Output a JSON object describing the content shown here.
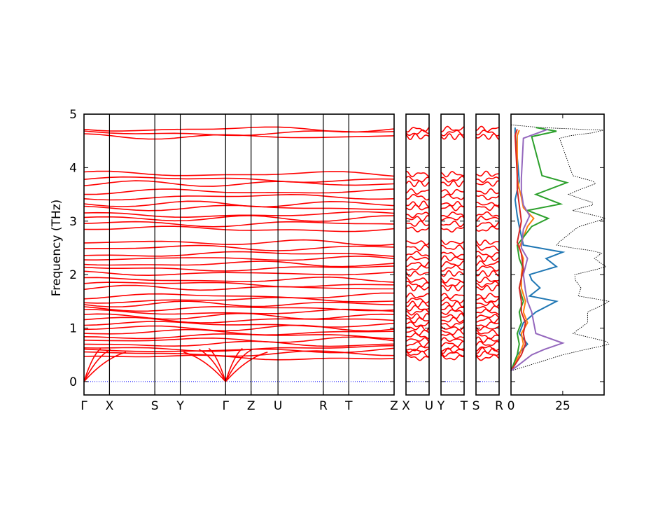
{
  "chart_data": {
    "type": "line",
    "ylabel": "Frequency (THz)",
    "ylim": [
      -0.25,
      5
    ],
    "yticks": [
      0,
      1,
      2,
      3,
      4,
      5
    ],
    "panels": [
      {
        "labels": [
          "Γ",
          "X",
          "S",
          "Y",
          "Γ",
          "Z",
          "U",
          "R",
          "T",
          "Z"
        ],
        "positions": [
          0,
          0.18,
          0.5,
          0.68,
          1,
          1.18,
          1.37,
          1.69,
          1.87,
          2.19
        ]
      },
      {
        "labels": [
          "X",
          "U"
        ],
        "positions": [
          0,
          1
        ]
      },
      {
        "labels": [
          "Y",
          "T"
        ],
        "positions": [
          0,
          1
        ]
      },
      {
        "labels": [
          "S",
          "R"
        ],
        "positions": [
          0,
          1
        ]
      }
    ],
    "band_levels": [
      0.45,
      0.52,
      0.58,
      0.62,
      0.7,
      0.78,
      0.85,
      0.92,
      1.0,
      1.07,
      1.15,
      1.22,
      1.3,
      1.37,
      1.45,
      1.52,
      1.6,
      1.75,
      1.82,
      1.9,
      2.02,
      2.12,
      2.2,
      2.3,
      2.38,
      2.5,
      2.6,
      2.85,
      2.95,
      3.05,
      3.12,
      3.25,
      3.32,
      3.45,
      3.55,
      3.7,
      3.78,
      3.88,
      4.58,
      4.65,
      4.72
    ],
    "dos": {
      "xlabel_ticks": [
        0,
        25
      ],
      "xlim": [
        0,
        45
      ],
      "series": [
        {
          "color": "#1f77b4",
          "values": [
            [
              0.2,
              0
            ],
            [
              0.5,
              3
            ],
            [
              0.7,
              8
            ],
            [
              0.9,
              4
            ],
            [
              1.1,
              6
            ],
            [
              1.3,
              12
            ],
            [
              1.5,
              22
            ],
            [
              1.6,
              9
            ],
            [
              1.75,
              14
            ],
            [
              1.9,
              10
            ],
            [
              2.0,
              9
            ],
            [
              2.15,
              22
            ],
            [
              2.3,
              17
            ],
            [
              2.42,
              25
            ],
            [
              2.55,
              6
            ],
            [
              2.9,
              4
            ],
            [
              3.1,
              3
            ],
            [
              3.4,
              2
            ],
            [
              3.75,
              4
            ],
            [
              4.65,
              2
            ],
            [
              4.75,
              2
            ]
          ]
        },
        {
          "color": "#ff7f0e",
          "values": [
            [
              0.2,
              0
            ],
            [
              0.5,
              4
            ],
            [
              0.7,
              6
            ],
            [
              0.9,
              5
            ],
            [
              1.1,
              8
            ],
            [
              1.3,
              6
            ],
            [
              1.5,
              7
            ],
            [
              1.75,
              5
            ],
            [
              2.0,
              5
            ],
            [
              2.3,
              6
            ],
            [
              2.5,
              4
            ],
            [
              2.9,
              8
            ],
            [
              3.05,
              11
            ],
            [
              3.25,
              6
            ],
            [
              3.45,
              5
            ],
            [
              3.6,
              4
            ],
            [
              3.8,
              3
            ],
            [
              4.6,
              3
            ],
            [
              4.7,
              4
            ]
          ]
        },
        {
          "color": "#2ca02c",
          "values": [
            [
              0.2,
              0
            ],
            [
              0.5,
              3
            ],
            [
              0.7,
              4
            ],
            [
              0.9,
              3
            ],
            [
              1.1,
              5
            ],
            [
              1.3,
              4
            ],
            [
              1.5,
              6
            ],
            [
              1.75,
              4
            ],
            [
              2.1,
              6
            ],
            [
              2.3,
              4
            ],
            [
              2.55,
              3
            ],
            [
              2.9,
              10
            ],
            [
              3.05,
              18
            ],
            [
              3.2,
              8
            ],
            [
              3.32,
              24
            ],
            [
              3.5,
              12
            ],
            [
              3.72,
              27
            ],
            [
              3.85,
              15
            ],
            [
              4.58,
              10
            ],
            [
              4.68,
              22
            ],
            [
              4.75,
              12
            ]
          ]
        },
        {
          "color": "#d62728",
          "values": [
            [
              0.2,
              0
            ],
            [
              0.5,
              5
            ],
            [
              0.7,
              7
            ],
            [
              0.9,
              6
            ],
            [
              1.1,
              7
            ],
            [
              1.3,
              5
            ],
            [
              1.5,
              5
            ],
            [
              1.75,
              4
            ],
            [
              2.1,
              6
            ],
            [
              2.4,
              5
            ],
            [
              2.6,
              3
            ],
            [
              3.0,
              5
            ],
            [
              3.3,
              4
            ],
            [
              3.6,
              3
            ],
            [
              3.85,
              3
            ],
            [
              4.6,
              2
            ],
            [
              4.72,
              3
            ]
          ]
        },
        {
          "color": "#9467bd",
          "values": [
            [
              0.2,
              0
            ],
            [
              0.5,
              10
            ],
            [
              0.6,
              16
            ],
            [
              0.72,
              25
            ],
            [
              0.9,
              12
            ],
            [
              1.1,
              11
            ],
            [
              1.3,
              10
            ],
            [
              1.5,
              8
            ],
            [
              1.7,
              7
            ],
            [
              2.0,
              6
            ],
            [
              2.3,
              8
            ],
            [
              2.5,
              5
            ],
            [
              2.85,
              6
            ],
            [
              3.1,
              9
            ],
            [
              3.3,
              6
            ],
            [
              3.55,
              5
            ],
            [
              3.8,
              5
            ],
            [
              4.55,
              6
            ],
            [
              4.72,
              18
            ]
          ]
        }
      ]
    }
  }
}
